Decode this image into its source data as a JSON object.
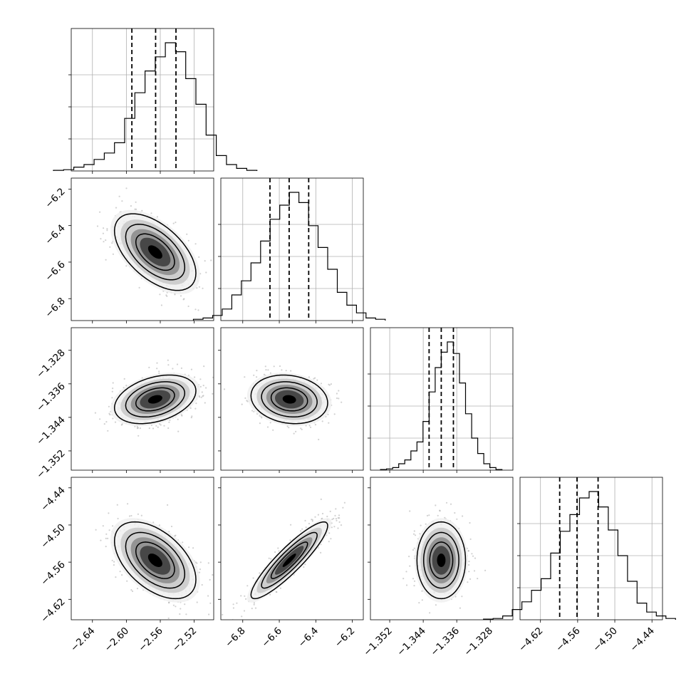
{
  "chart_data": {
    "type": "corner",
    "parameters": [
      {
        "range": [
          -2.665,
          -2.497
        ],
        "ticks": [
          -2.64,
          -2.6,
          -2.56,
          -2.52
        ],
        "tick_labels": [
          "−2.64",
          "−2.60",
          "−2.56",
          "−2.52"
        ],
        "quantiles": [
          -2.5935,
          -2.5655,
          -2.5415
        ],
        "mean": -2.566,
        "sd": 0.024
      },
      {
        "range": [
          -6.92,
          -6.14
        ],
        "ticks": [
          -6.8,
          -6.6,
          -6.4,
          -6.2
        ],
        "tick_labels": [
          "−6.8",
          "−6.6",
          "−6.4",
          "−6.2"
        ],
        "quantiles": [
          -6.651,
          -6.546,
          -6.439
        ],
        "mean": -6.545,
        "sd": 0.105
      },
      {
        "range": [
          -1.3566,
          -1.3226
        ],
        "ticks": [
          -1.352,
          -1.344,
          -1.336,
          -1.328
        ],
        "tick_labels": [
          "−1.352",
          "−1.344",
          "−1.336",
          "−1.328"
        ],
        "quantiles": [
          -1.3426,
          -1.3397,
          -1.3368
        ],
        "mean": -1.3397,
        "sd": 0.0029
      },
      {
        "range": [
          -4.653,
          -4.423
        ],
        "ticks": [
          -4.62,
          -4.56,
          -4.5,
          -4.44
        ],
        "tick_labels": [
          "−4.62",
          "−4.56",
          "−4.50",
          "−4.44"
        ],
        "quantiles": [
          -4.589,
          -4.561,
          -4.527
        ],
        "mean": -4.557,
        "sd": 0.031
      }
    ],
    "histograms": [
      [
        0.005,
        0.01,
        0.03,
        0.05,
        0.09,
        0.14,
        0.22,
        0.41,
        0.61,
        0.78,
        0.89,
        1.0,
        0.93,
        0.72,
        0.52,
        0.28,
        0.12,
        0.05,
        0.02,
        0.005
      ],
      [
        0.01,
        0.02,
        0.04,
        0.09,
        0.2,
        0.31,
        0.45,
        0.62,
        0.79,
        0.9,
        1.0,
        0.92,
        0.74,
        0.57,
        0.4,
        0.22,
        0.12,
        0.06,
        0.02,
        0.01
      ],
      [
        0.005,
        0.01,
        0.02,
        0.05,
        0.08,
        0.15,
        0.22,
        0.38,
        0.61,
        0.8,
        0.92,
        1.0,
        0.91,
        0.68,
        0.44,
        0.25,
        0.13,
        0.05,
        0.02,
        0.005
      ],
      [
        0.005,
        0.01,
        0.03,
        0.08,
        0.14,
        0.23,
        0.32,
        0.52,
        0.69,
        0.82,
        0.95,
        1.0,
        0.88,
        0.7,
        0.5,
        0.3,
        0.13,
        0.06,
        0.03,
        0.01
      ]
    ],
    "correlations": {
      "1-0": -0.55,
      "2-0": 0.35,
      "2-1": -0.15,
      "3-0": -0.5,
      "3-1": 0.9,
      "3-2": 0.0
    },
    "grid": true,
    "legend": "none"
  }
}
